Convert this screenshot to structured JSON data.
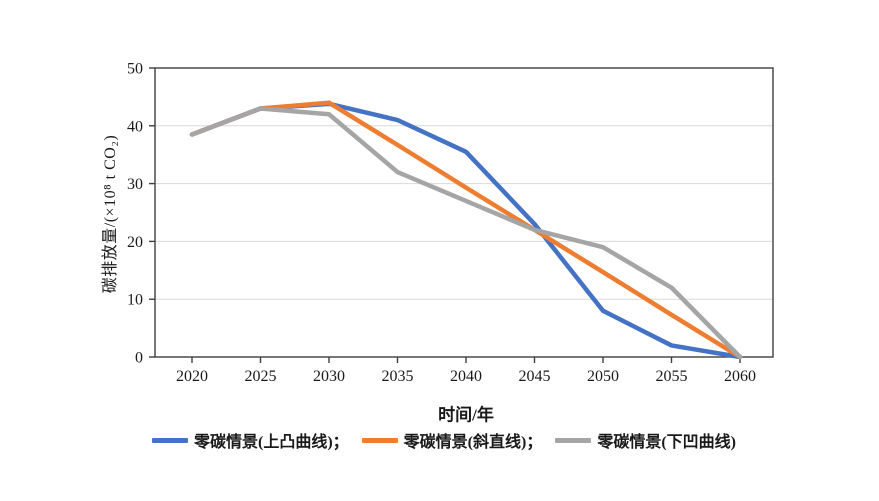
{
  "page": {
    "background_color": "#ffffff"
  },
  "chart_data": {
    "type": "line",
    "title": "",
    "xlabel": "时间/年",
    "ylabel": "碳排放量/(×10⁸ t CO₂)",
    "x": [
      2020,
      2025,
      2030,
      2035,
      2040,
      2045,
      2050,
      2055,
      2060
    ],
    "ylim": [
      0,
      50
    ],
    "yticks": [
      0,
      10,
      20,
      30,
      40,
      50
    ],
    "grid": "horizontal",
    "legend_position": "bottom",
    "series": [
      {
        "name": "零碳情景(上凸曲线)",
        "color": "#4472C4",
        "values": [
          38.5,
          43,
          43.8,
          41,
          35.5,
          23,
          8,
          2,
          0
        ]
      },
      {
        "name": "零碳情景(斜直线)",
        "color": "#ED7D31",
        "values": [
          38.5,
          43,
          44,
          36.7,
          29.3,
          22,
          14.7,
          7.3,
          0
        ]
      },
      {
        "name": "零碳情景(下凹曲线)",
        "color": "#A5A5A5",
        "values": [
          38.5,
          43,
          42,
          32,
          27,
          22,
          19,
          12,
          0
        ]
      }
    ],
    "colors": {
      "axis": "#3f3f3f",
      "gridline": "#d9d9d9",
      "tick_text": "#1a1a1a"
    }
  },
  "legend": {
    "items": [
      {
        "label": "零碳情景(上凸曲线)；"
      },
      {
        "label": "零碳情景(斜直线)；"
      },
      {
        "label": "零碳情景(下凹曲线)"
      }
    ]
  }
}
